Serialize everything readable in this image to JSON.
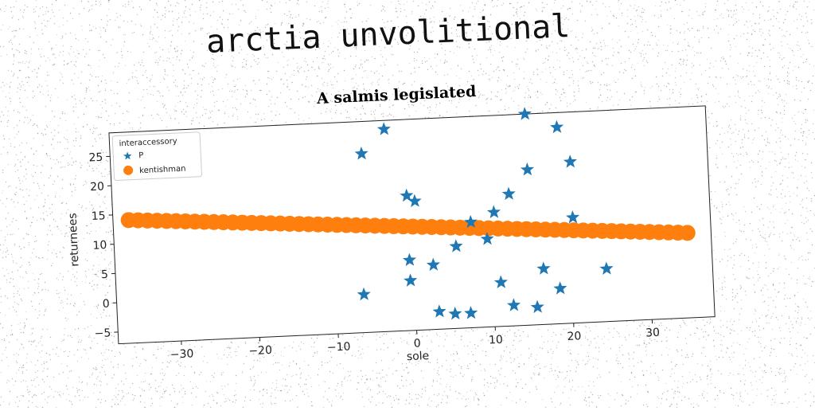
{
  "headline": "arctia unvolitional",
  "chart_data": {
    "type": "scatter",
    "title": "A salmis legislated",
    "xlabel": "sole",
    "ylabel": "returnees",
    "xlim": [
      -38,
      38
    ],
    "ylim": [
      -7,
      29
    ],
    "xticks": [
      -30,
      -20,
      -10,
      0,
      10,
      20,
      30
    ],
    "yticks": [
      -5,
      0,
      5,
      10,
      15,
      20,
      25
    ],
    "legend": {
      "title": "interaccessory",
      "position": "top-left"
    },
    "series": [
      {
        "name": "P",
        "marker": "star",
        "color": "#1f77b4",
        "points": [
          [
            -6,
            23.5
          ],
          [
            -3,
            27.5
          ],
          [
            15,
            29
          ],
          [
            19,
            26.5
          ],
          [
            20.5,
            20.5
          ],
          [
            15,
            19.5
          ],
          [
            12.5,
            15.5
          ],
          [
            -0.5,
            16
          ],
          [
            0.5,
            15
          ],
          [
            10.5,
            12.5
          ],
          [
            7.5,
            11
          ],
          [
            20.5,
            11
          ],
          [
            9.5,
            8
          ],
          [
            5.5,
            7
          ],
          [
            -0.5,
            5
          ],
          [
            2.5,
            4
          ],
          [
            16.5,
            2.5
          ],
          [
            24.5,
            2
          ],
          [
            -0.5,
            1.5
          ],
          [
            11,
            0.5
          ],
          [
            -6.5,
            -0.5
          ],
          [
            18.5,
            -1
          ],
          [
            12.5,
            -3.5
          ],
          [
            15.5,
            -4
          ],
          [
            3,
            -4
          ],
          [
            5,
            -4.5
          ],
          [
            7,
            -4.5
          ]
        ]
      },
      {
        "name": "kentishman",
        "marker": "circle",
        "color": "#ff7f0e",
        "line": {
          "x_start": -36,
          "x_end": 35,
          "y_start": 14,
          "y_end": 7.5,
          "count": 60
        }
      }
    ]
  }
}
